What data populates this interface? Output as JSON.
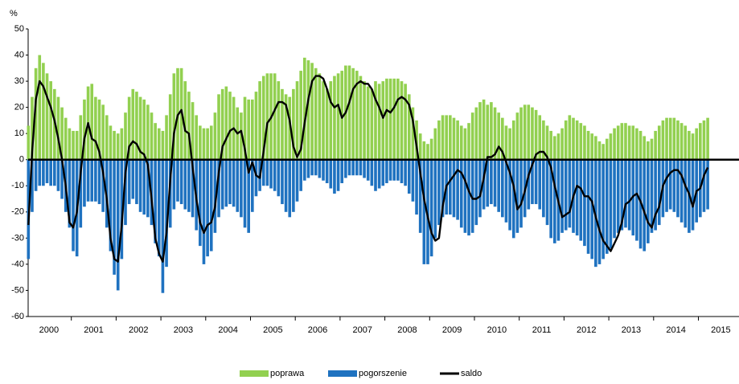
{
  "chart_data": {
    "type": "bar-line",
    "y_unit": "%",
    "categories": [
      "2000",
      "2001",
      "2002",
      "2003",
      "2004",
      "2005",
      "2006",
      "2007",
      "2008",
      "2009",
      "2010",
      "2011",
      "2012",
      "2013",
      "2014",
      "2015"
    ],
    "ylim": [
      -60,
      50
    ],
    "yticks": [
      50,
      40,
      30,
      20,
      10,
      0,
      -10,
      -20,
      -30,
      -40,
      -50,
      -60
    ],
    "series": [
      {
        "name": "poprawa",
        "color": "#92d050",
        "type": "bar",
        "values": [
          [
            13,
            24,
            35,
            40,
            37,
            33,
            30,
            27,
            24,
            20,
            16,
            12
          ],
          [
            11,
            11,
            17,
            23,
            28,
            29,
            24,
            23,
            21,
            17,
            13,
            11
          ],
          [
            10,
            12,
            18,
            24,
            27,
            26,
            24,
            23,
            21,
            18,
            14,
            12
          ],
          [
            11,
            17,
            25,
            33,
            35,
            35,
            30,
            26,
            22,
            17,
            13,
            12
          ],
          [
            12,
            13,
            18,
            25,
            27,
            28,
            26,
            24,
            20,
            18,
            24,
            23
          ],
          [
            23,
            26,
            30,
            32,
            33,
            33,
            33,
            30,
            27,
            25,
            24,
            27
          ],
          [
            30,
            34,
            39,
            38,
            37,
            35,
            33,
            30,
            27,
            30,
            32,
            33
          ],
          [
            34,
            36,
            36,
            35,
            34,
            32,
            30,
            28,
            27,
            30,
            29,
            30
          ],
          [
            31,
            31,
            31,
            31,
            30,
            29,
            25,
            20,
            15,
            10,
            7,
            6
          ],
          [
            8,
            12,
            15,
            17,
            17,
            17,
            16,
            15,
            13,
            12,
            14,
            18
          ],
          [
            20,
            22,
            23,
            21,
            22,
            20,
            18,
            16,
            13,
            12,
            15,
            18
          ],
          [
            20,
            21,
            21,
            20,
            19,
            17,
            15,
            13,
            11,
            9,
            10,
            12
          ],
          [
            15,
            17,
            16,
            15,
            14,
            13,
            11,
            10,
            9,
            7,
            6,
            8
          ],
          [
            10,
            12,
            13,
            14,
            14,
            13,
            13,
            12,
            11,
            9,
            7,
            8
          ],
          [
            11,
            13,
            15,
            16,
            16,
            16,
            15,
            14,
            13,
            11,
            10,
            12
          ],
          [
            14,
            15,
            16
          ]
        ]
      },
      {
        "name": "pogorszenie",
        "color": "#1f72c0",
        "type": "bar",
        "values": [
          [
            -38,
            -20,
            -12,
            -10,
            -10,
            -9,
            -10,
            -10,
            -12,
            -15,
            -20,
            -26
          ],
          [
            -35,
            -37,
            -26,
            -18,
            -16,
            -16,
            -16,
            -17,
            -20,
            -26,
            -35,
            -44
          ],
          [
            -50,
            -38,
            -25,
            -17,
            -15,
            -17,
            -20,
            -21,
            -22,
            -25,
            -32,
            -37
          ],
          [
            -51,
            -41,
            -26,
            -19,
            -16,
            -17,
            -19,
            -20,
            -22,
            -27,
            -33,
            -40
          ],
          [
            -37,
            -35,
            -28,
            -22,
            -19,
            -18,
            -17,
            -18,
            -20,
            -22,
            -26,
            -28
          ],
          [
            -20,
            -14,
            -12,
            -10,
            -10,
            -11,
            -12,
            -14,
            -17,
            -20,
            -22,
            -20
          ],
          [
            -16,
            -12,
            -8,
            -7,
            -6,
            -6,
            -7,
            -8,
            -9,
            -11,
            -13,
            -12
          ],
          [
            -9,
            -7,
            -6,
            -6,
            -6,
            -6,
            -7,
            -8,
            -10,
            -12,
            -11,
            -10
          ],
          [
            -9,
            -8,
            -8,
            -8,
            -9,
            -10,
            -13,
            -16,
            -21,
            -28,
            -40,
            -40
          ],
          [
            -37,
            -30,
            -25,
            -22,
            -21,
            -21,
            -22,
            -23,
            -26,
            -28,
            -29,
            -28
          ],
          [
            -25,
            -22,
            -19,
            -18,
            -17,
            -18,
            -20,
            -22,
            -24,
            -27,
            -30,
            -28
          ],
          [
            -26,
            -22,
            -19,
            -17,
            -17,
            -19,
            -22,
            -25,
            -30,
            -32,
            -31,
            -28
          ],
          [
            -27,
            -26,
            -28,
            -29,
            -31,
            -33,
            -36,
            -38,
            -41,
            -40,
            -38,
            -36
          ],
          [
            -34,
            -30,
            -28,
            -27,
            -26,
            -27,
            -29,
            -31,
            -34,
            -35,
            -32,
            -28
          ],
          [
            -27,
            -25,
            -22,
            -20,
            -19,
            -20,
            -22,
            -24,
            -26,
            -28,
            -27,
            -24
          ],
          [
            -22,
            -20,
            -19
          ]
        ]
      },
      {
        "name": "saldo",
        "color": "#000000",
        "type": "line",
        "values": [
          [
            -25,
            3,
            23,
            30,
            28,
            24,
            20,
            15,
            8,
            0,
            -10,
            -24
          ],
          [
            -26,
            -20,
            -5,
            8,
            14,
            8,
            7,
            3,
            -5,
            -15,
            -30,
            -38
          ],
          [
            -39,
            -25,
            -5,
            5,
            7,
            6,
            3,
            2,
            -2,
            -15,
            -30,
            -36
          ],
          [
            -39,
            -28,
            -8,
            10,
            17,
            19,
            11,
            10,
            -3,
            -15,
            -24,
            -28
          ],
          [
            -25,
            -24,
            -18,
            -5,
            5,
            8,
            11,
            12,
            10,
            11,
            4,
            -5
          ],
          [
            -1,
            -6,
            -7,
            3,
            14,
            16,
            19,
            22,
            22,
            21,
            15,
            5
          ],
          [
            1,
            4,
            14,
            23,
            30,
            32,
            32,
            31,
            27,
            22,
            20,
            21
          ],
          [
            16,
            18,
            22,
            27,
            29,
            30,
            29,
            29,
            27,
            23,
            20,
            16
          ],
          [
            19,
            18,
            20,
            23,
            24,
            23,
            21,
            15,
            5,
            -5,
            -15,
            -22
          ],
          [
            -28,
            -31,
            -30,
            -18,
            -10,
            -8,
            -6,
            -4,
            -5,
            -8,
            -12,
            -15
          ],
          [
            -15,
            -14,
            -7,
            1,
            1,
            2,
            5,
            3,
            -1,
            -5,
            -10,
            -19
          ],
          [
            -17,
            -12,
            -6,
            -2,
            2,
            3,
            3,
            1,
            -3,
            -10,
            -16,
            -22
          ],
          [
            -21,
            -20,
            -14,
            -10,
            -11,
            -14,
            -14,
            -16,
            -22,
            -27,
            -31,
            -33
          ],
          [
            -35,
            -32,
            -29,
            -24,
            -17,
            -16,
            -14,
            -13,
            -16,
            -20,
            -24,
            -26
          ],
          [
            -21,
            -18,
            -10,
            -7,
            -5,
            -4,
            -4,
            -6,
            -10,
            -13,
            -18,
            -12
          ],
          [
            -11,
            -6,
            -3
          ]
        ]
      }
    ]
  }
}
